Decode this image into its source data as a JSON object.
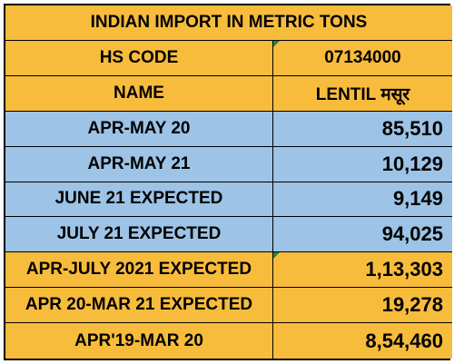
{
  "title": "INDIAN IMPORT IN METRIC TONS",
  "hs_code": {
    "label": "HS CODE",
    "value": "07134000"
  },
  "name": {
    "label": "NAME",
    "value": "LENTIL मसूर"
  },
  "rows": [
    {
      "label": "APR-MAY 20",
      "value": "85,510",
      "color": "#9dc3e6"
    },
    {
      "label": "APR-MAY 21",
      "value": "10,129",
      "color": "#9dc3e6"
    },
    {
      "label": "JUNE 21 EXPECTED",
      "value": "9,149",
      "color": "#9dc3e6"
    },
    {
      "label": "JULY 21 EXPECTED",
      "value": "94,025",
      "color": "#9dc3e6"
    },
    {
      "label": "APR-JULY 2021 EXPECTED",
      "value": "1,13,303",
      "color": "#f8bc3c"
    },
    {
      "label": "APR 20-MAR 21 EXPECTED",
      "value": "19,278",
      "color": "#f8bc3c"
    },
    {
      "label": "APR'19-MAR 20",
      "value": "8,54,460",
      "color": "#f8bc3c"
    }
  ],
  "colors": {
    "header": "#f8bc3c",
    "period_rows": "#9dc3e6",
    "totals_rows": "#f8bc3c"
  }
}
